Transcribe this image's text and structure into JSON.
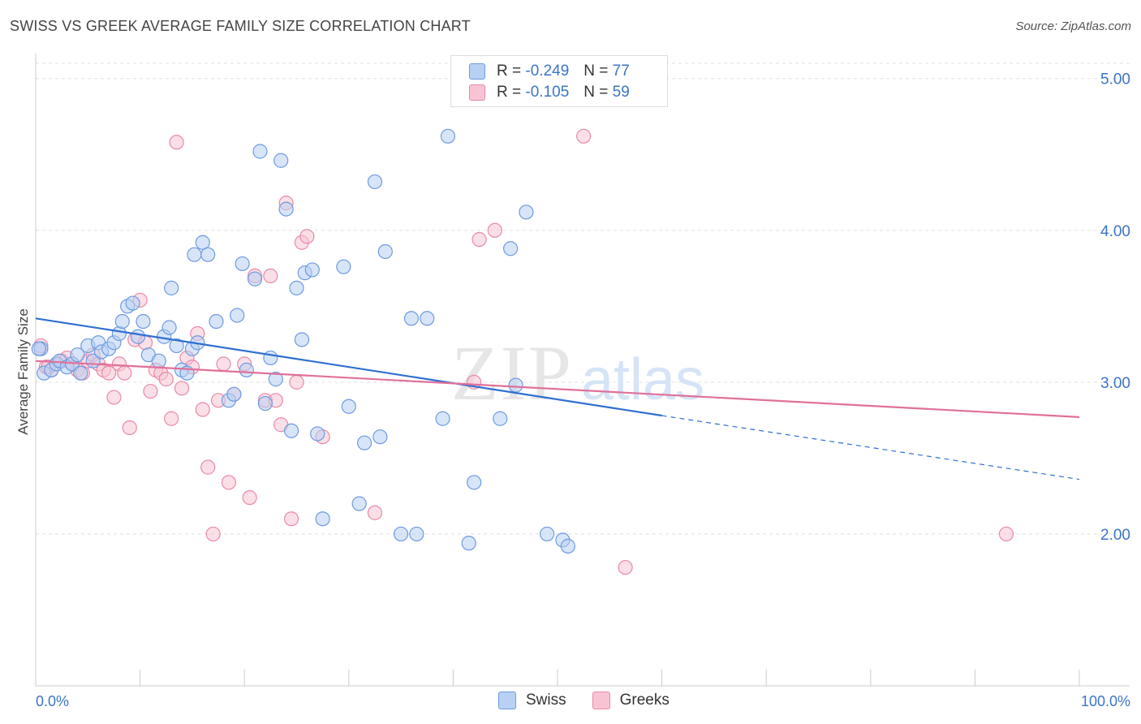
{
  "title": "SWISS VS GREEK AVERAGE FAMILY SIZE CORRELATION CHART",
  "source": "Source: ZipAtlas.com",
  "watermark": {
    "zip": "ZIP",
    "atlas": "atlas"
  },
  "legend": {
    "swiss": {
      "r_label": "R =",
      "r_value": "-0.249",
      "n_label": "N =",
      "n_value": "77"
    },
    "greeks": {
      "r_label": "R =",
      "r_value": "-0.105",
      "n_label": "N =",
      "n_value": "59"
    }
  },
  "colors": {
    "swiss_fill": "#b8d0f3",
    "swiss_stroke": "#6d9be0",
    "swiss_line": "#2f6fd0",
    "greeks_fill": "#f8c4d4",
    "greeks_stroke": "#e88aa8",
    "greeks_line": "#e0709a",
    "axis_text": "#3b74c7",
    "grid": "#e0e0e0"
  },
  "chart_data": {
    "type": "scatter",
    "title": "SWISS VS GREEK AVERAGE FAMILY SIZE CORRELATION CHART",
    "xlabel": "",
    "ylabel": "Average Family Size",
    "xlim": [
      0,
      100
    ],
    "ylim": [
      1.0,
      5.1
    ],
    "x_tick_labels": {
      "min": "0.0%",
      "max": "100.0%"
    },
    "y_ticks": [
      2.0,
      3.0,
      4.0,
      5.0
    ],
    "y_tick_labels": [
      "2.00",
      "3.00",
      "4.00",
      "5.00"
    ],
    "series": [
      {
        "name": "Swiss",
        "points": [
          [
            0.5,
            3.22
          ],
          [
            0.8,
            3.06
          ],
          [
            1.5,
            3.08
          ],
          [
            2.0,
            3.12
          ],
          [
            2.3,
            3.14
          ],
          [
            3.0,
            3.1
          ],
          [
            3.5,
            3.12
          ],
          [
            4.0,
            3.18
          ],
          [
            4.3,
            3.06
          ],
          [
            5.0,
            3.24
          ],
          [
            5.5,
            3.14
          ],
          [
            6.0,
            3.26
          ],
          [
            6.3,
            3.2
          ],
          [
            7.0,
            3.22
          ],
          [
            7.5,
            3.26
          ],
          [
            8.0,
            3.32
          ],
          [
            8.3,
            3.4
          ],
          [
            8.8,
            3.5
          ],
          [
            9.3,
            3.52
          ],
          [
            9.8,
            3.3
          ],
          [
            10.3,
            3.4
          ],
          [
            10.8,
            3.18
          ],
          [
            11.8,
            3.14
          ],
          [
            12.3,
            3.3
          ],
          [
            12.8,
            3.36
          ],
          [
            13.0,
            3.62
          ],
          [
            13.5,
            3.24
          ],
          [
            14.0,
            3.08
          ],
          [
            14.5,
            3.06
          ],
          [
            15.0,
            3.22
          ],
          [
            15.5,
            3.26
          ],
          [
            15.2,
            3.84
          ],
          [
            16.0,
            3.92
          ],
          [
            16.5,
            3.84
          ],
          [
            17.3,
            3.4
          ],
          [
            18.5,
            2.88
          ],
          [
            19.0,
            2.92
          ],
          [
            19.3,
            3.44
          ],
          [
            19.8,
            3.78
          ],
          [
            20.2,
            3.08
          ],
          [
            21.0,
            3.68
          ],
          [
            21.5,
            4.52
          ],
          [
            22.0,
            2.86
          ],
          [
            22.5,
            3.16
          ],
          [
            23.0,
            3.02
          ],
          [
            23.5,
            4.46
          ],
          [
            24.0,
            4.14
          ],
          [
            24.5,
            2.68
          ],
          [
            25.0,
            3.62
          ],
          [
            25.5,
            3.28
          ],
          [
            25.8,
            3.72
          ],
          [
            26.5,
            3.74
          ],
          [
            27.0,
            2.66
          ],
          [
            27.5,
            2.1
          ],
          [
            29.5,
            3.76
          ],
          [
            30.0,
            2.84
          ],
          [
            31.0,
            2.2
          ],
          [
            31.5,
            2.6
          ],
          [
            32.5,
            4.32
          ],
          [
            33.0,
            2.64
          ],
          [
            33.5,
            3.86
          ],
          [
            35.0,
            2.0
          ],
          [
            36.0,
            3.42
          ],
          [
            36.5,
            2.0
          ],
          [
            37.5,
            3.42
          ],
          [
            39.0,
            2.76
          ],
          [
            39.5,
            4.62
          ],
          [
            41.5,
            1.94
          ],
          [
            42.0,
            2.34
          ],
          [
            44.5,
            2.76
          ],
          [
            45.5,
            3.88
          ],
          [
            46.0,
            2.98
          ],
          [
            47.0,
            4.12
          ],
          [
            49.0,
            2.0
          ],
          [
            50.5,
            1.96
          ],
          [
            51.0,
            1.92
          ],
          [
            0.3,
            3.22
          ]
        ]
      },
      {
        "name": "Greeks",
        "points": [
          [
            0.5,
            3.24
          ],
          [
            1.0,
            3.1
          ],
          [
            1.5,
            3.08
          ],
          [
            2.0,
            3.12
          ],
          [
            2.5,
            3.14
          ],
          [
            3.0,
            3.16
          ],
          [
            3.5,
            3.12
          ],
          [
            4.0,
            3.08
          ],
          [
            4.5,
            3.06
          ],
          [
            5.0,
            3.14
          ],
          [
            5.5,
            3.18
          ],
          [
            6.0,
            3.12
          ],
          [
            6.5,
            3.08
          ],
          [
            7.0,
            3.06
          ],
          [
            7.5,
            2.9
          ],
          [
            8.0,
            3.12
          ],
          [
            8.5,
            3.06
          ],
          [
            9.0,
            2.7
          ],
          [
            9.5,
            3.28
          ],
          [
            10.0,
            3.54
          ],
          [
            10.5,
            3.26
          ],
          [
            11.0,
            2.94
          ],
          [
            11.5,
            3.08
          ],
          [
            12.0,
            3.06
          ],
          [
            12.5,
            3.02
          ],
          [
            13.0,
            2.76
          ],
          [
            13.5,
            4.58
          ],
          [
            14.0,
            2.96
          ],
          [
            14.5,
            3.16
          ],
          [
            15.0,
            3.1
          ],
          [
            15.5,
            3.32
          ],
          [
            16.0,
            2.82
          ],
          [
            16.5,
            2.44
          ],
          [
            17.0,
            2.0
          ],
          [
            17.5,
            2.88
          ],
          [
            18.0,
            3.12
          ],
          [
            18.5,
            2.34
          ],
          [
            19.0,
            2.92
          ],
          [
            20.0,
            3.12
          ],
          [
            20.5,
            2.24
          ],
          [
            21.0,
            3.7
          ],
          [
            22.0,
            2.88
          ],
          [
            22.5,
            3.7
          ],
          [
            23.0,
            2.88
          ],
          [
            23.5,
            2.72
          ],
          [
            24.0,
            4.18
          ],
          [
            24.5,
            2.1
          ],
          [
            25.0,
            3.0
          ],
          [
            25.5,
            3.92
          ],
          [
            26.0,
            3.96
          ],
          [
            27.5,
            2.64
          ],
          [
            32.5,
            2.14
          ],
          [
            42.0,
            3.0
          ],
          [
            42.5,
            3.94
          ],
          [
            44.0,
            4.0
          ],
          [
            52.5,
            4.62
          ],
          [
            56.5,
            1.78
          ],
          [
            93.0,
            2.0
          ],
          [
            1.2,
            3.1
          ]
        ]
      }
    ],
    "trend_lines": [
      {
        "name": "Swiss",
        "x0": 0,
        "y0": 3.42,
        "x1": 60,
        "y1": 2.78,
        "dashed_to_x": 100,
        "dashed_to_y": 2.36
      },
      {
        "name": "Greeks",
        "x0": 0,
        "y0": 3.14,
        "x1": 100,
        "y1": 2.77
      }
    ],
    "legend": [
      {
        "name": "Swiss",
        "label": "Swiss"
      },
      {
        "name": "Greeks",
        "label": "Greeks"
      }
    ]
  }
}
